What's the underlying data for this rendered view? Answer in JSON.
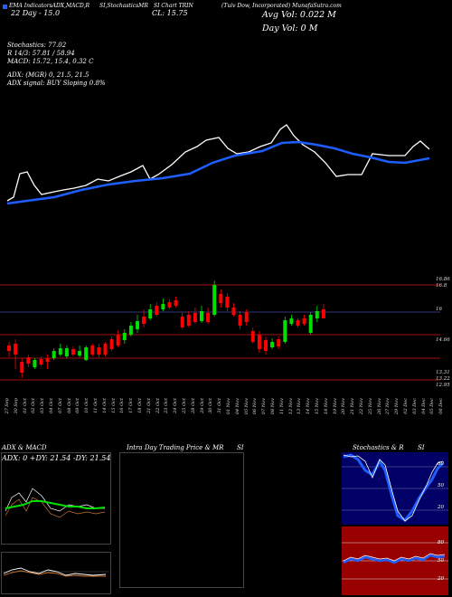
{
  "header": {
    "ticker_line": "(Tuiv Dow, Incorporated) MunafaSutra.com",
    "top_left_label": "EMA IndicatorsADX,MACD,R",
    "top_mid_label": "SI,StochasticsMR",
    "top_ticker_label": "SI Chart TRIN",
    "days_label": "22 Day - 15.0",
    "cl_label": "CL: 15.75",
    "avg_vol": "Avg Vol: 0.022  M",
    "day_vol": "Day Vol: 0   M"
  },
  "stats": {
    "stochastics": "Stochastics: 77.02",
    "r": "R                  14/3: 57.81 / 58.94",
    "macd": "MACD: 15.72,  15.4,  0.32  C",
    "adx": "ADX:                        (MGR) 0, 21.5,  21.5",
    "adx_signal": "ADX  signal:                         BUY Sloping 0.8%"
  },
  "price_labels": {
    "l1": "16.86",
    "l2": "16.8",
    "l3": "16",
    "l4": "14.66",
    "l5": "13.31",
    "l6": "13.22",
    "l7": "12.95"
  },
  "dates": [
    "27 Sep",
    "30 Sep",
    "01 Oct",
    "02 Oct",
    "03 Oct",
    "04 Oct",
    "07 Oct",
    "08 Oct",
    "09 Oct",
    "10 Oct",
    "11 Oct",
    "14 Oct",
    "15 Oct",
    "16 Oct",
    "17 Oct",
    "18 Oct",
    "21 Oct",
    "22 Oct",
    "23 Oct",
    "24 Oct",
    "25 Oct",
    "28 Oct",
    "29 Oct",
    "30 Oct",
    "31 Oct",
    "01 Nov",
    "04 Nov",
    "05 Nov",
    "06 Nov",
    "07 Nov",
    "08 Nov",
    "11 Nov",
    "12 Nov",
    "13 Nov",
    "14 Nov",
    "15 Nov",
    "18 Nov",
    "19 Nov",
    "20 Nov",
    "21 Nov",
    "22 Nov",
    "25 Nov",
    "26 Nov",
    "27 Nov",
    "29 Nov",
    "02 Dec",
    "03 Dec",
    "04 Dec",
    "05 Dec",
    "06 Dec"
  ],
  "panels": {
    "adx_title": "ADX  & MACD",
    "adx_values": "ADX: 0   +DY: 21.54  -DY: 21.54",
    "intra_title": "Intra  Day Trading Price  & MR",
    "intra_si": "SI",
    "stoch_title": "Stochastics & R",
    "stoch_si": "SI",
    "stoch_levels": [
      "80",
      "50",
      "20"
    ],
    "rsi_levels": [
      "80",
      "50",
      "20"
    ]
  },
  "colors": {
    "ema_fast": "#ffffff",
    "ema_slow": "#1e5eff",
    "up": "#00e000",
    "down": "#ff0000",
    "stoch_bg": "#000066",
    "rsi_bg": "#990000"
  }
}
